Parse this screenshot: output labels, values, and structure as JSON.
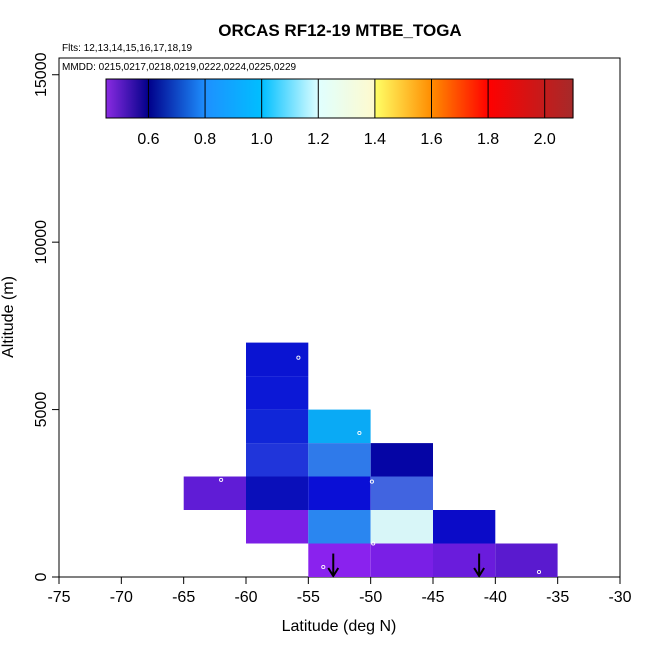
{
  "chart_data": {
    "type": "heatmap",
    "title": "ORCAS RF12-19 MTBE_TOGA",
    "flights_note": "Flts: 12,13,14,15,16,17,18,19",
    "dates_note": "MMDD: 0215,0217,0218,0219,0222,0224,0225,0229",
    "xlabel": "Latitude (deg N)",
    "ylabel": "Altitude (m)",
    "xlim": [
      -75,
      -30
    ],
    "ylim": [
      0,
      15500
    ],
    "x_ticks": [
      -75,
      -70,
      -65,
      -60,
      -55,
      -50,
      -45,
      -40,
      -35,
      -30
    ],
    "x_tick_labels": [
      "-75",
      "-70",
      "-65",
      "-60",
      "-55",
      "-50",
      "-45",
      "-40",
      "-35",
      "-30"
    ],
    "y_ticks": [
      0,
      5000,
      10000,
      15000
    ],
    "y_tick_labels": [
      "0",
      "5000",
      "10000",
      "15000"
    ],
    "bin_width_lat": 5,
    "bin_height_alt": 1000,
    "colorbar": {
      "range": [
        0.45,
        2.1
      ],
      "ticks": [
        0.6,
        0.8,
        1.0,
        1.2,
        1.4,
        1.6,
        1.8,
        2.0
      ],
      "tick_labels": [
        "0.6",
        "0.8",
        "1.0",
        "1.2",
        "1.4",
        "1.6",
        "1.8",
        "2.0"
      ],
      "segments": [
        {
          "from": 0.45,
          "to": 0.6,
          "color_start": "#8a2be2",
          "color_end": "#000088"
        },
        {
          "from": 0.6,
          "to": 0.8,
          "color_start": "#00008b",
          "color_end": "#1e90ff"
        },
        {
          "from": 0.8,
          "to": 1.0,
          "color_start": "#1e90ff",
          "color_end": "#00bfff"
        },
        {
          "from": 1.0,
          "to": 1.2,
          "color_start": "#00bfff",
          "color_end": "#e0ffff"
        },
        {
          "from": 1.2,
          "to": 1.4,
          "color_start": "#e0ffff",
          "color_end": "#fffacd"
        },
        {
          "from": 1.4,
          "to": 1.6,
          "color_start": "#ffff66",
          "color_end": "#ff8c00"
        },
        {
          "from": 1.6,
          "to": 1.8,
          "color_start": "#ff8c00",
          "color_end": "#ff0000"
        },
        {
          "from": 1.8,
          "to": 2.1,
          "color_start": "#ff0000",
          "color_end": "#a52a2a"
        }
      ]
    },
    "cells": [
      {
        "lat": -57.5,
        "alt": 6500,
        "value": 0.64,
        "color": "#0a14d2"
      },
      {
        "lat": -57.5,
        "alt": 5500,
        "value": 0.65,
        "color": "#0c18d6"
      },
      {
        "lat": -57.5,
        "alt": 4500,
        "value": 0.68,
        "color": "#1026d8"
      },
      {
        "lat": -57.5,
        "alt": 3500,
        "value": 0.72,
        "color": "#2035da"
      },
      {
        "lat": -57.5,
        "alt": 2500,
        "value": 0.58,
        "color": "#0a0fba"
      },
      {
        "lat": -57.5,
        "alt": 1500,
        "value": 0.48,
        "color": "#7b1fe6"
      },
      {
        "lat": -62.5,
        "alt": 2500,
        "value": 0.5,
        "color": "#601cd6"
      },
      {
        "lat": -52.5,
        "alt": 4500,
        "value": 1.05,
        "color": "#0aaaf5"
      },
      {
        "lat": -52.5,
        "alt": 3500,
        "value": 0.9,
        "color": "#2f7aea"
      },
      {
        "lat": -52.5,
        "alt": 2500,
        "value": 0.62,
        "color": "#0a0fd6"
      },
      {
        "lat": -52.5,
        "alt": 1500,
        "value": 0.88,
        "color": "#2a86f0"
      },
      {
        "lat": -52.5,
        "alt": 500,
        "value": 0.46,
        "color": "#8a22ee"
      },
      {
        "lat": -47.5,
        "alt": 3500,
        "value": 0.58,
        "color": "#0505a5"
      },
      {
        "lat": -47.5,
        "alt": 2500,
        "value": 0.78,
        "color": "#4164e0"
      },
      {
        "lat": -47.5,
        "alt": 1500,
        "value": 1.25,
        "color": "#d8f6f8"
      },
      {
        "lat": -47.5,
        "alt": 500,
        "value": 0.47,
        "color": "#7a1fe6"
      },
      {
        "lat": -42.5,
        "alt": 1500,
        "value": 0.6,
        "color": "#0b0bc8"
      },
      {
        "lat": -42.5,
        "alt": 500,
        "value": 0.48,
        "color": "#6a1cdc"
      },
      {
        "lat": -37.5,
        "alt": 500,
        "value": 0.5,
        "color": "#5a1acf"
      }
    ],
    "markers": [
      {
        "lat": -55.8,
        "alt": 6550
      },
      {
        "lat": -50.9,
        "alt": 4300
      },
      {
        "lat": -49.9,
        "alt": 2850
      },
      {
        "lat": -62.0,
        "alt": 2900
      },
      {
        "lat": -49.8,
        "alt": 1000
      },
      {
        "lat": -53.8,
        "alt": 300
      },
      {
        "lat": -36.5,
        "alt": 150
      }
    ],
    "arrows": [
      {
        "lat": -53.0,
        "alt_top": 700,
        "alt_bottom": 0
      },
      {
        "lat": -41.3,
        "alt_top": 700,
        "alt_bottom": 0
      }
    ],
    "legend": {
      "position": "top",
      "type": "colorbar"
    },
    "grid": false
  }
}
